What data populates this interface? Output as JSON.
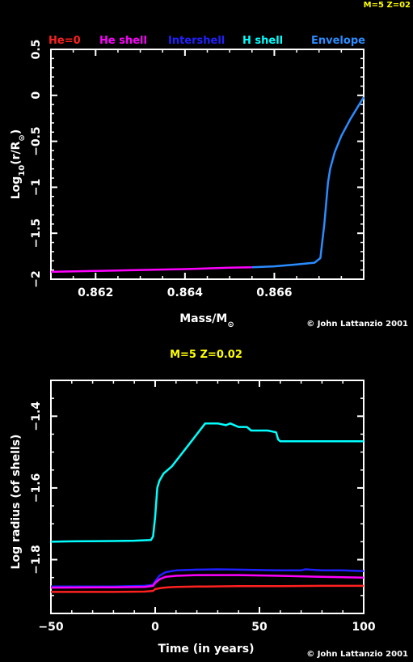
{
  "corner_label": "M=5 Z=02",
  "chart_data": [
    {
      "type": "line",
      "title": "",
      "xlabel": "Mass/M⊙",
      "ylabel": "Log10(r/R⊙)",
      "xlim": [
        0.861,
        0.868
      ],
      "ylim": [
        -2,
        0.5
      ],
      "xticks": [
        0.862,
        0.864,
        0.866
      ],
      "yticks": [
        -2,
        -1.5,
        -1,
        -0.5,
        0,
        0.5
      ],
      "xtick_labels": [
        "0.862",
        "0.864",
        "0.866"
      ],
      "ytick_labels": [
        "−2",
        "−1.5",
        "−1",
        "−0.5",
        "0",
        "0.5"
      ],
      "legend": [
        {
          "name": "He=0",
          "color": "#ff2020"
        },
        {
          "name": "He shell",
          "color": "#ff00ff"
        },
        {
          "name": "Intershell",
          "color": "#2020ff"
        },
        {
          "name": "H shell",
          "color": "#00ffff"
        },
        {
          "name": "Envelope",
          "color": "#2a8cff"
        }
      ],
      "legend_position": "top",
      "credit": "© John Lattanzio 2001",
      "series": [
        {
          "color": "#ff00ff",
          "x": [
            0.861,
            0.862,
            0.863,
            0.864,
            0.865,
            0.8655
          ],
          "y": [
            -1.92,
            -1.91,
            -1.9,
            -1.89,
            -1.875,
            -1.87
          ]
        },
        {
          "color": "#2a8cff",
          "x": [
            0.8655,
            0.866,
            0.8665,
            0.8669,
            0.86703,
            0.86712,
            0.8672,
            0.86725,
            0.86735,
            0.8675,
            0.8677,
            0.868
          ],
          "y": [
            -1.87,
            -1.86,
            -1.84,
            -1.82,
            -1.77,
            -1.4,
            -0.95,
            -0.8,
            -0.62,
            -0.44,
            -0.26,
            -0.02
          ]
        }
      ]
    },
    {
      "type": "line",
      "title": "M=5 Z=0.02",
      "xlabel": "Time (in years)",
      "ylabel": "Log radius  (of shells)",
      "xlim": [
        -50,
        100
      ],
      "ylim": [
        -1.95,
        -1.3
      ],
      "xticks": [
        -50,
        0,
        50,
        100
      ],
      "yticks": [
        -1.8,
        -1.6,
        -1.4
      ],
      "xtick_labels": [
        "−50",
        "0",
        "50",
        "100"
      ],
      "ytick_labels": [
        "−1.8",
        "−1.6",
        "−1.4"
      ],
      "credit": "© John Lattanzio 2001",
      "series": [
        {
          "color": "#00ffff",
          "x": [
            -50,
            -40,
            -20,
            -10,
            -2,
            -1,
            0,
            1,
            2,
            4,
            8,
            12,
            16,
            20,
            24,
            26,
            30,
            34,
            36,
            40,
            44,
            46,
            50,
            54,
            58,
            59,
            60,
            70,
            80,
            90,
            100
          ],
          "y": [
            -1.75,
            -1.749,
            -1.748,
            -1.747,
            -1.745,
            -1.735,
            -1.68,
            -1.6,
            -1.58,
            -1.56,
            -1.54,
            -1.51,
            -1.48,
            -1.45,
            -1.42,
            -1.42,
            -1.42,
            -1.425,
            -1.42,
            -1.43,
            -1.43,
            -1.44,
            -1.44,
            -1.44,
            -1.445,
            -1.465,
            -1.47,
            -1.47,
            -1.47,
            -1.47,
            -1.47
          ]
        },
        {
          "color": "#2020ff",
          "x": [
            -50,
            -20,
            -5,
            -1,
            0,
            2,
            5,
            10,
            20,
            30,
            40,
            50,
            60,
            70,
            72,
            80,
            90,
            100
          ],
          "y": [
            -1.875,
            -1.875,
            -1.873,
            -1.87,
            -1.86,
            -1.845,
            -1.835,
            -1.83,
            -1.828,
            -1.827,
            -1.828,
            -1.829,
            -1.83,
            -1.83,
            -1.827,
            -1.83,
            -1.83,
            -1.832
          ]
        },
        {
          "color": "#ff00ff",
          "x": [
            -50,
            -20,
            -5,
            -1,
            0,
            2,
            5,
            10,
            20,
            40,
            60,
            80,
            100
          ],
          "y": [
            -1.878,
            -1.877,
            -1.876,
            -1.873,
            -1.865,
            -1.855,
            -1.848,
            -1.845,
            -1.843,
            -1.843,
            -1.845,
            -1.848,
            -1.85
          ]
        },
        {
          "color": "#ff2020",
          "x": [
            -50,
            -20,
            -5,
            -1,
            0,
            3,
            6,
            10,
            20,
            40,
            60,
            80,
            100
          ],
          "y": [
            -1.89,
            -1.89,
            -1.889,
            -1.887,
            -1.882,
            -1.879,
            -1.877,
            -1.876,
            -1.875,
            -1.874,
            -1.874,
            -1.873,
            -1.873
          ]
        }
      ]
    }
  ]
}
